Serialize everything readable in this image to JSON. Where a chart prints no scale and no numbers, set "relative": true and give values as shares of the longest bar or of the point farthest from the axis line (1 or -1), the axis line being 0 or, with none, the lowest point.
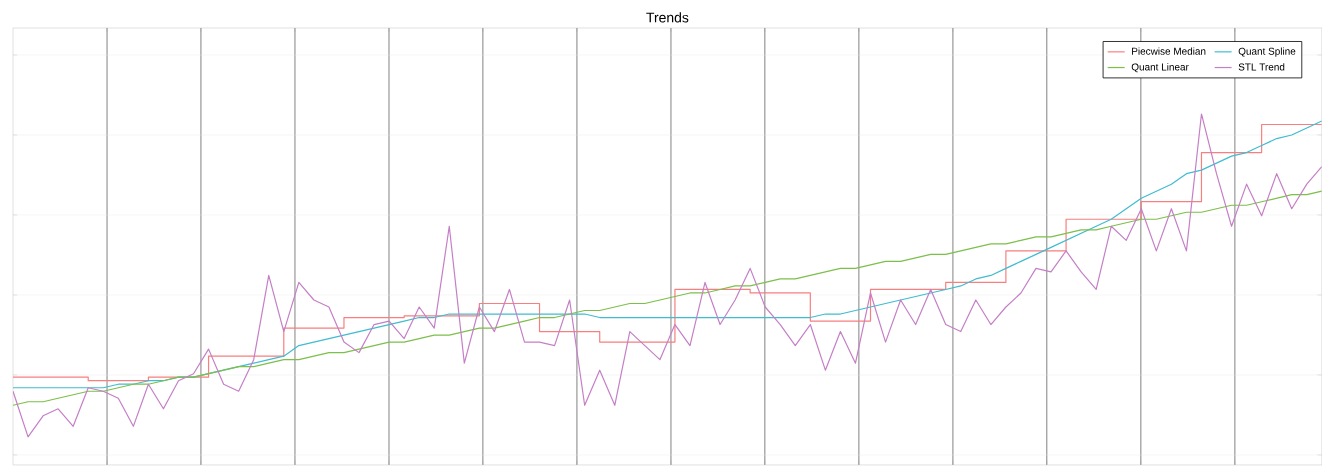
{
  "chart_data": {
    "type": "line",
    "title": "Trends",
    "relative": true,
    "grid": true,
    "legend": "top right",
    "categories": [
      null,
      null,
      null,
      null,
      null,
      null,
      null,
      null,
      null,
      null,
      null,
      null,
      null,
      null,
      null,
      null,
      null,
      null,
      null,
      null,
      null,
      null,
      null,
      null,
      null,
      null,
      null,
      null,
      null,
      null,
      null,
      null,
      null,
      null,
      null,
      null,
      null,
      null,
      null,
      null,
      null,
      null,
      null,
      null,
      null,
      null,
      null,
      null,
      null,
      null,
      null,
      null,
      null,
      null,
      null,
      null,
      null,
      null,
      null,
      null,
      null,
      null,
      null,
      null,
      null,
      null,
      null,
      null,
      null,
      null,
      null,
      null,
      null,
      null,
      null,
      null,
      null,
      null,
      null,
      null,
      null,
      null,
      null,
      null,
      null,
      null,
      null,
      null
    ],
    "series": [
      {
        "name": "Piecwise Median",
        "type": "step",
        "color": "#f87f7f",
        "values": [
          0.25,
          0.25,
          0.25,
          0.25,
          0.25,
          0.24,
          0.24,
          0.24,
          0.24,
          0.25,
          0.25,
          0.25,
          0.25,
          0.31,
          0.31,
          0.31,
          0.31,
          0.31,
          0.39,
          0.39,
          0.39,
          0.39,
          0.42,
          0.42,
          0.42,
          0.42,
          0.425,
          0.425,
          0.425,
          0.425,
          0.425,
          0.46,
          0.46,
          0.46,
          0.46,
          0.38,
          0.38,
          0.38,
          0.38,
          0.35,
          0.35,
          0.35,
          0.35,
          0.35,
          0.5,
          0.5,
          0.5,
          0.5,
          0.5,
          0.49,
          0.49,
          0.49,
          0.49,
          0.41,
          0.41,
          0.41,
          0.41,
          0.5,
          0.5,
          0.5,
          0.5,
          0.5,
          0.52,
          0.52,
          0.52,
          0.52,
          0.61,
          0.61,
          0.61,
          0.61,
          0.7,
          0.7,
          0.7,
          0.7,
          0.7,
          0.75,
          0.75,
          0.75,
          0.75,
          0.89,
          0.89,
          0.89,
          0.89,
          0.97,
          0.97,
          0.97,
          0.97,
          0.97
        ]
      },
      {
        "name": "Quant Spline",
        "color": "#40bcd0",
        "values": [
          0.22,
          0.22,
          0.22,
          0.22,
          0.22,
          0.22,
          0.22,
          0.23,
          0.23,
          0.24,
          0.24,
          0.25,
          0.25,
          0.26,
          0.27,
          0.28,
          0.29,
          0.3,
          0.31,
          0.34,
          0.35,
          0.36,
          0.37,
          0.38,
          0.39,
          0.4,
          0.41,
          0.42,
          0.42,
          0.43,
          0.43,
          0.43,
          0.43,
          0.43,
          0.43,
          0.43,
          0.43,
          0.43,
          0.43,
          0.42,
          0.42,
          0.42,
          0.42,
          0.42,
          0.42,
          0.42,
          0.42,
          0.42,
          0.42,
          0.42,
          0.42,
          0.42,
          0.42,
          0.42,
          0.43,
          0.43,
          0.44,
          0.45,
          0.46,
          0.47,
          0.48,
          0.49,
          0.5,
          0.51,
          0.53,
          0.54,
          0.56,
          0.58,
          0.6,
          0.62,
          0.64,
          0.66,
          0.68,
          0.7,
          0.73,
          0.76,
          0.78,
          0.8,
          0.83,
          0.84,
          0.86,
          0.88,
          0.89,
          0.91,
          0.93,
          0.94,
          0.96,
          0.98
        ]
      },
      {
        "name": "Quant Linear",
        "color": "#7cbf4a",
        "values": [
          0.17,
          0.18,
          0.18,
          0.19,
          0.2,
          0.21,
          0.21,
          0.22,
          0.23,
          0.23,
          0.24,
          0.25,
          0.25,
          0.26,
          0.27,
          0.28,
          0.28,
          0.29,
          0.3,
          0.3,
          0.31,
          0.32,
          0.32,
          0.33,
          0.34,
          0.35,
          0.35,
          0.36,
          0.37,
          0.37,
          0.38,
          0.39,
          0.39,
          0.4,
          0.41,
          0.42,
          0.42,
          0.43,
          0.44,
          0.44,
          0.45,
          0.46,
          0.46,
          0.47,
          0.48,
          0.49,
          0.49,
          0.5,
          0.51,
          0.51,
          0.52,
          0.53,
          0.53,
          0.54,
          0.55,
          0.56,
          0.56,
          0.57,
          0.58,
          0.58,
          0.59,
          0.6,
          0.6,
          0.61,
          0.62,
          0.63,
          0.63,
          0.64,
          0.65,
          0.65,
          0.66,
          0.67,
          0.67,
          0.68,
          0.69,
          0.7,
          0.7,
          0.71,
          0.72,
          0.72,
          0.73,
          0.74,
          0.74,
          0.75,
          0.76,
          0.77,
          0.77,
          0.78
        ]
      },
      {
        "name": "STL Trend",
        "color": "#c57fc6",
        "values": [
          0.21,
          0.08,
          0.14,
          0.16,
          0.11,
          0.22,
          0.21,
          0.19,
          0.11,
          0.23,
          0.16,
          0.24,
          0.26,
          0.33,
          0.23,
          0.21,
          0.3,
          0.54,
          0.38,
          0.52,
          0.47,
          0.45,
          0.35,
          0.32,
          0.4,
          0.41,
          0.36,
          0.45,
          0.39,
          0.68,
          0.29,
          0.45,
          0.38,
          0.5,
          0.35,
          0.35,
          0.34,
          0.47,
          0.17,
          0.27,
          0.17,
          0.38,
          0.34,
          0.3,
          0.4,
          0.34,
          0.52,
          0.4,
          0.47,
          0.56,
          0.45,
          0.4,
          0.34,
          0.4,
          0.27,
          0.38,
          0.29,
          0.49,
          0.35,
          0.47,
          0.4,
          0.5,
          0.4,
          0.38,
          0.47,
          0.4,
          0.45,
          0.49,
          0.56,
          0.55,
          0.61,
          0.55,
          0.5,
          0.68,
          0.64,
          0.73,
          0.61,
          0.73,
          0.61,
          1.0,
          0.83,
          0.68,
          0.8,
          0.71,
          0.83,
          0.73,
          0.8,
          0.85
        ]
      }
    ]
  }
}
